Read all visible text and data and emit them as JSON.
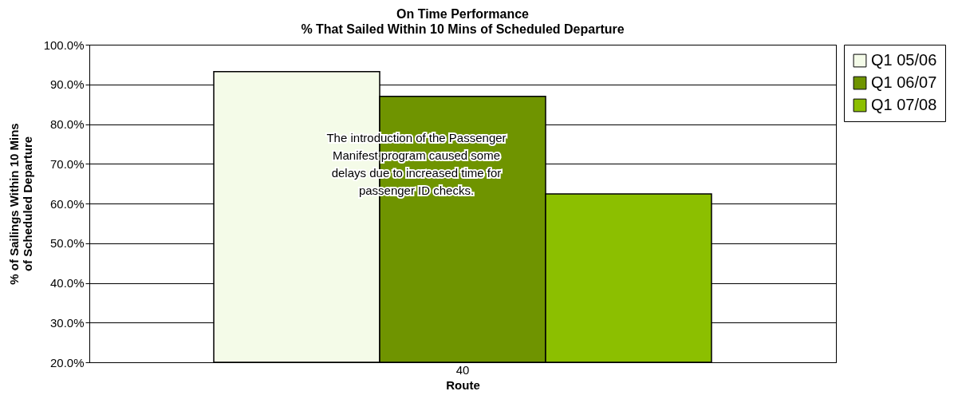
{
  "chart_data": {
    "type": "bar",
    "title": "On Time Performance",
    "subtitle": "% That Sailed Within 10 Mins of Scheduled Departure",
    "xlabel": "Route",
    "ylabel": "% of Sailings Within 10 Mins of Scheduled Departure",
    "categories": [
      "40"
    ],
    "series": [
      {
        "name": "Q1 05/06",
        "color": "#f4fbe8",
        "values": [
          93.2
        ]
      },
      {
        "name": "Q1 06/07",
        "color": "#6f9400",
        "values": [
          87.0
        ]
      },
      {
        "name": "Q1 07/08",
        "color": "#8cbf00",
        "values": [
          62.4
        ]
      }
    ],
    "ylim": [
      20,
      100
    ],
    "yticks": [
      {
        "value": 20,
        "label": "20.0%"
      },
      {
        "value": 30,
        "label": "30.0%"
      },
      {
        "value": 40,
        "label": "40.0%"
      },
      {
        "value": 50,
        "label": "50.0%"
      },
      {
        "value": 60,
        "label": "60.0%"
      },
      {
        "value": 70,
        "label": "70.0%"
      },
      {
        "value": 80,
        "label": "80.0%"
      },
      {
        "value": 90,
        "label": "90.0%"
      },
      {
        "value": 100,
        "label": "100.0%"
      }
    ],
    "grid": "y",
    "legend": "top right",
    "annotations": [
      "The introduction of the Passenger Manifest program caused some delays due to increased time for passenger ID checks."
    ]
  }
}
